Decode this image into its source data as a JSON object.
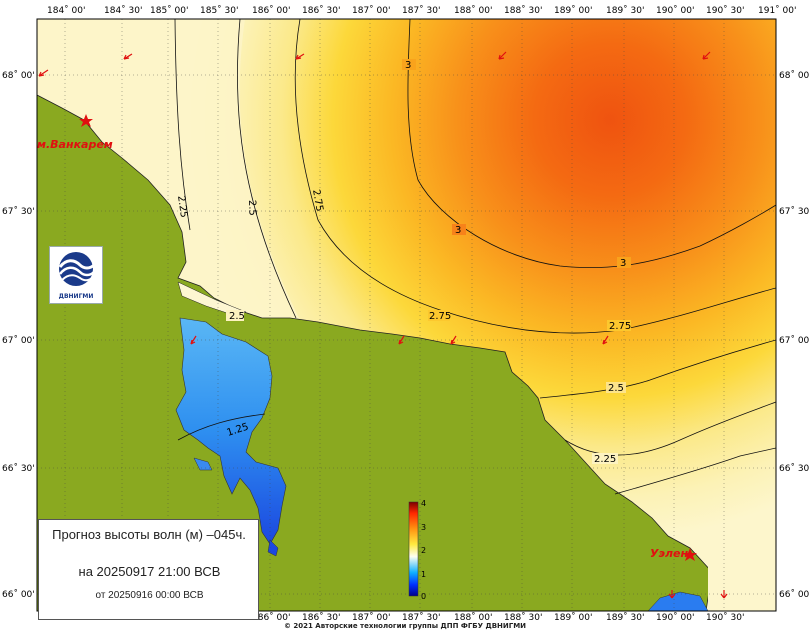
{
  "map": {
    "lon_labels": [
      "184˚ 00'",
      "184˚ 30'",
      "185˚ 00'",
      "185˚ 30'",
      "186˚ 00'",
      "186˚ 30'",
      "187˚ 00'",
      "187˚ 30'",
      "188˚ 00'",
      "188˚ 30'",
      "189˚ 00'",
      "189˚ 30'",
      "190˚ 00'",
      "190˚ 30'",
      "191˚ 00'"
    ],
    "lat_labels": [
      "68˚ 00'",
      "67˚ 30'",
      "67˚ 00'",
      "66˚ 30'",
      "66˚ 00'"
    ],
    "contour_labels": [
      "3",
      "3",
      "3",
      "2.75",
      "2.75",
      "2.75",
      "2.5",
      "2.5",
      "2.5",
      "2.25",
      "2.25",
      "1.25"
    ],
    "places": [
      "м.Ванкарем",
      "Уэлен"
    ],
    "colorbar": {
      "ticks": [
        "4",
        "3",
        "2",
        "1",
        "0"
      ],
      "min": 0,
      "max": 4
    },
    "colors": {
      "land": "#8aa920",
      "sea_low": "#fdf6c8",
      "sea_high": "#f05a10",
      "lagoon": "#2a8af0",
      "arrow": "#e01010"
    }
  },
  "info": {
    "title": "Прогноз высоты волн (м) –045ч.",
    "valid": "на 20250917 21:00 ВСВ",
    "issued": "от 20250916 00:00 ВСВ"
  },
  "logo": {
    "text": "ДВНИГМИ"
  },
  "footer": {
    "copyright": "© 2021 Авторские технологии группы ДПП ФГБУ ДВНИГМИ"
  }
}
